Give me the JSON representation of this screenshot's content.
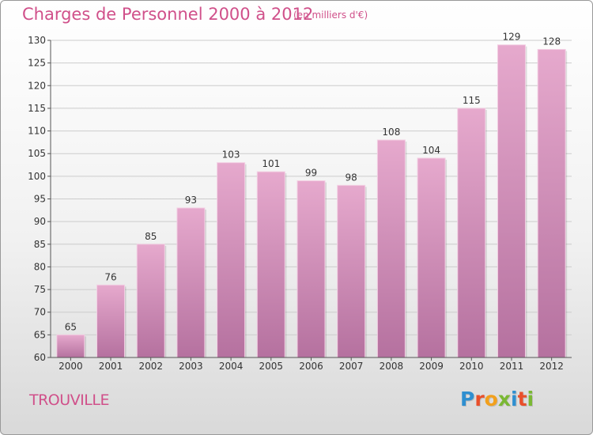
{
  "header": {
    "title": "Charges de Personnel 2000 à 2012",
    "unit_note": "(en milliers d'€)"
  },
  "footer": {
    "commune": "TROUVILLE",
    "logo_text": "Proxiti",
    "logo_letters": [
      {
        "ch": "P",
        "color": "#2f8fd0"
      },
      {
        "ch": "r",
        "color": "#e94f2a"
      },
      {
        "ch": "o",
        "color": "#f2a01c"
      },
      {
        "ch": "x",
        "color": "#7ab833"
      },
      {
        "ch": "i",
        "color": "#2f8fd0"
      },
      {
        "ch": "t",
        "color": "#e94f2a"
      },
      {
        "ch": "i",
        "color": "#7ab833"
      }
    ]
  },
  "colors": {
    "accent": "#d0508a",
    "bar_top": "#e6a9cd",
    "bar_bottom": "#b5719f",
    "axis": "#555555",
    "grid": "#cccccc"
  },
  "chart_data": {
    "type": "bar",
    "title": "Charges de Personnel 2000 à 2012",
    "subtitle": "(en milliers d'€)",
    "categories": [
      "2000",
      "2001",
      "2002",
      "2003",
      "2004",
      "2005",
      "2006",
      "2007",
      "2008",
      "2009",
      "2010",
      "2011",
      "2012"
    ],
    "values": [
      65,
      76,
      85,
      93,
      103,
      101,
      99,
      98,
      108,
      104,
      115,
      129,
      128
    ],
    "ylim": [
      60,
      130
    ],
    "yticks": [
      60,
      65,
      70,
      75,
      80,
      85,
      90,
      95,
      100,
      105,
      110,
      115,
      120,
      125,
      130
    ],
    "grid": true,
    "data_labels": true
  }
}
